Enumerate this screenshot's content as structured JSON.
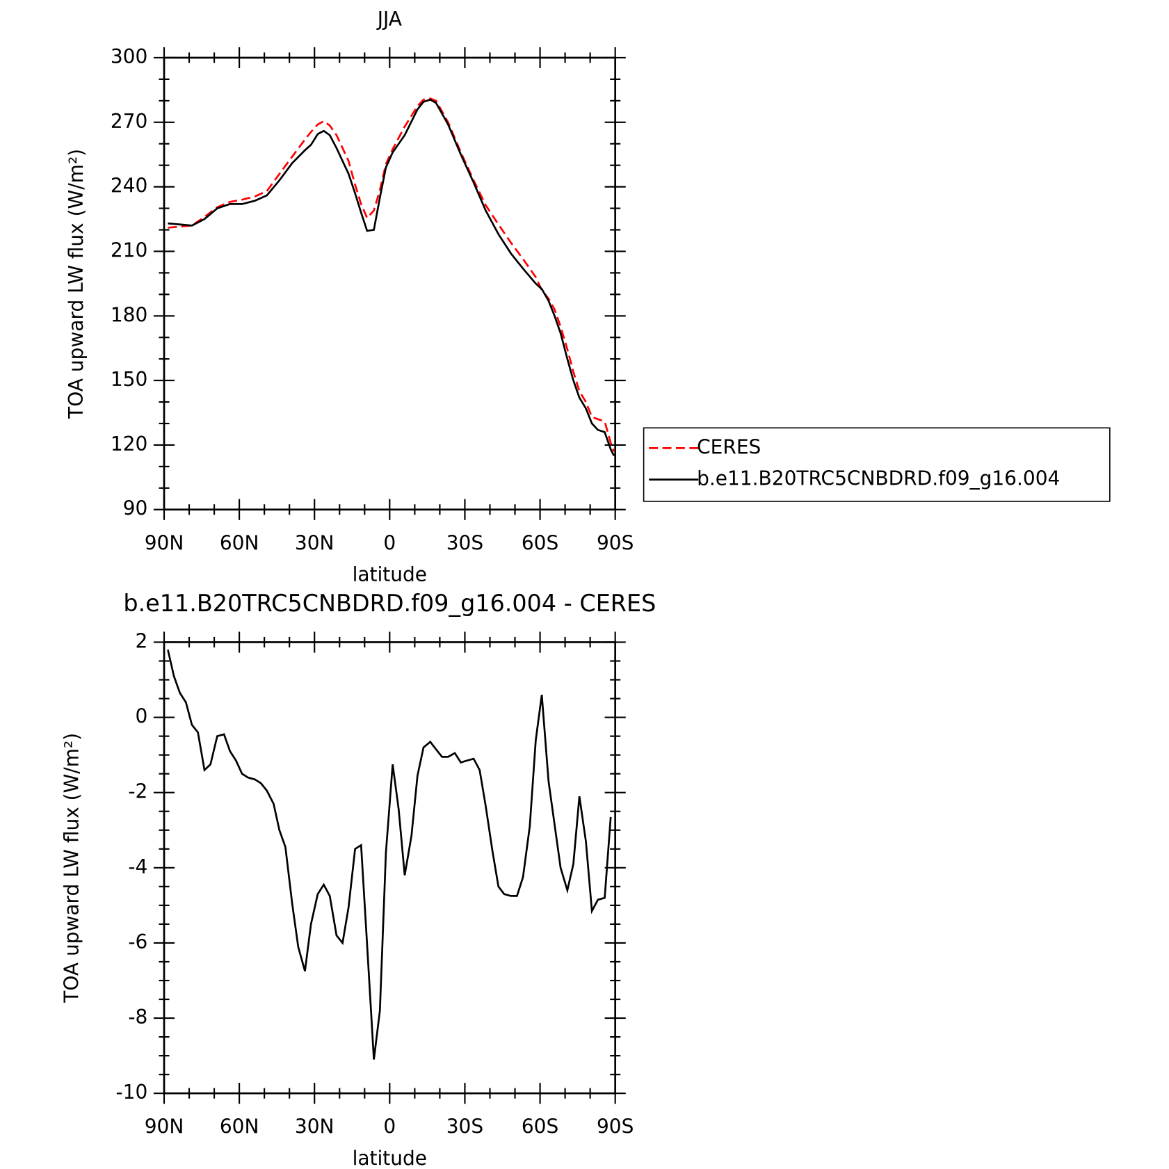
{
  "chart_data": [
    {
      "type": "line",
      "title": "JJA",
      "xlabel": "latitude",
      "ylabel": "TOA upward LW flux (W/m²)",
      "x": [
        88.5,
        83.7,
        78.9,
        73.9,
        68.8,
        63.7,
        58.9,
        53.8,
        49,
        44,
        38.9,
        33.8,
        31.4,
        28.7,
        26.3,
        23.9,
        21.2,
        16.4,
        13.8,
        11.4,
        9,
        6.3,
        3.9,
        1.5,
        -1.2,
        -6,
        -11.1,
        -13.5,
        -16.2,
        -18.5,
        -23.3,
        -28.4,
        -33.5,
        -38.3,
        -43.4,
        -48.4,
        -53.2,
        -58.3,
        -60.7,
        -63.4,
        -65.8,
        -68.2,
        -70.9,
        -73.3,
        -75.7,
        -78.3,
        -80.7,
        -83.1,
        -85.8,
        -88.2,
        -89.5
      ],
      "series": [
        {
          "name": "CERES",
          "color": "#ff0000",
          "style": "dashed",
          "values": [
            221,
            221.5,
            222,
            226,
            230.5,
            233,
            234,
            235.5,
            238,
            246,
            254,
            262,
            265.5,
            269,
            270.5,
            268.5,
            264,
            252,
            241,
            232,
            225.5,
            229,
            238.5,
            250.5,
            257.5,
            268,
            277.5,
            280.5,
            281,
            280,
            270,
            256,
            243,
            231.5,
            222.5,
            214,
            206.5,
            198,
            192,
            188,
            183,
            175,
            164.5,
            154,
            145,
            140,
            133,
            132,
            131,
            121,
            117
          ]
        },
        {
          "name": "b.e11.B20TRC5CNBDRD.f09_g16.004",
          "color": "#000000",
          "style": "solid",
          "values": [
            223,
            222.5,
            222,
            225,
            230,
            232,
            232,
            233.5,
            236,
            243,
            251,
            257,
            259.5,
            264.5,
            266,
            264,
            258,
            246,
            237,
            228,
            219.5,
            220,
            235,
            249,
            256,
            264,
            276,
            279.5,
            280.5,
            279,
            269,
            255,
            242,
            229,
            218,
            209,
            202,
            195,
            192.5,
            187,
            180,
            172,
            160,
            150,
            142,
            137,
            130,
            127,
            126,
            118,
            115
          ]
        }
      ],
      "xlim": [
        90,
        -90
      ],
      "xticks": [
        {
          "value": 90,
          "label": "90N"
        },
        {
          "value": 60,
          "label": "60N"
        },
        {
          "value": 30,
          "label": "30N"
        },
        0,
        {
          "value": -30,
          "label": "30S"
        },
        {
          "value": -60,
          "label": "60S"
        },
        {
          "value": -90,
          "label": "90S"
        }
      ],
      "ylim": [
        90,
        300
      ],
      "yticks": [
        90,
        120,
        150,
        180,
        210,
        240,
        270,
        300
      ],
      "legend": "right"
    },
    {
      "type": "line",
      "title": "b.e11.B20TRC5CNBDRD.f09_g16.004 - CERES",
      "xlabel": "latitude",
      "ylabel": "TOA upward LW flux (W/m²)",
      "x": [
        88.5,
        86.1,
        83.7,
        81.3,
        78.9,
        76.5,
        73.9,
        71.5,
        68.8,
        66.1,
        63.7,
        61.3,
        58.9,
        56.5,
        53.8,
        51.4,
        49.0,
        46.3,
        44.0,
        41.6,
        38.9,
        36.5,
        33.8,
        31.4,
        28.7,
        26.3,
        23.9,
        21.2,
        18.8,
        16.4,
        13.8,
        11.4,
        9.0,
        6.3,
        3.9,
        1.5,
        -1.2,
        -3.6,
        -6.0,
        -8.7,
        -11.1,
        -13.5,
        -16.2,
        -18.5,
        -20.9,
        -23.3,
        -26.0,
        -28.4,
        -30.8,
        -33.5,
        -35.9,
        -38.3,
        -41.0,
        -43.4,
        -45.7,
        -48.4,
        -50.8,
        -53.2,
        -55.9,
        -58.3,
        -60.7,
        -63.4,
        -65.8,
        -68.2,
        -70.9,
        -73.3,
        -75.7,
        -78.3,
        -80.7,
        -83.1,
        -85.8,
        -88.2
      ],
      "series": [
        {
          "color": "#000000",
          "style": "solid",
          "values": [
            1.8,
            1.1,
            0.65,
            0.4,
            -0.2,
            -0.4,
            -1.4,
            -1.25,
            -0.5,
            -0.45,
            -0.9,
            -1.15,
            -1.5,
            -1.6,
            -1.65,
            -1.75,
            -1.95,
            -2.3,
            -3.0,
            -3.45,
            -4.95,
            -6.1,
            -6.75,
            -5.5,
            -4.7,
            -4.45,
            -4.75,
            -5.8,
            -6.0,
            -5.05,
            -3.5,
            -3.4,
            -6.05,
            -9.1,
            -7.8,
            -3.6,
            -1.25,
            -2.45,
            -4.2,
            -3.15,
            -1.55,
            -0.8,
            -0.65,
            -0.85,
            -1.05,
            -1.05,
            -0.95,
            -1.2,
            -1.15,
            -1.1,
            -1.4,
            -2.35,
            -3.55,
            -4.5,
            -4.7,
            -4.75,
            -4.75,
            -4.25,
            -2.9,
            -0.6,
            0.6,
            -1.7,
            -2.85,
            -4.0,
            -4.6,
            -3.9,
            -2.1,
            -3.3,
            -5.15,
            -4.85,
            -4.8,
            -2.65
          ]
        }
      ],
      "xlim": [
        90,
        -90
      ],
      "xticks": [
        {
          "value": 90,
          "label": "90N"
        },
        {
          "value": 60,
          "label": "60N"
        },
        {
          "value": 30,
          "label": "30N"
        },
        0,
        {
          "value": -30,
          "label": "30S"
        },
        {
          "value": -60,
          "label": "60S"
        },
        {
          "value": -90,
          "label": "90S"
        }
      ],
      "ylim": [
        -10,
        2
      ],
      "yticks": [
        -10,
        -8,
        -6,
        -4,
        -2,
        0,
        2
      ]
    }
  ]
}
